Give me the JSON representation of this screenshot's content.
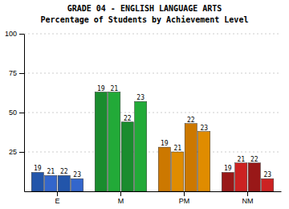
{
  "chart_data": {
    "type": "bar",
    "title": "GRADE 04 - ENGLISH LANGUAGE ARTS",
    "subtitle": "Percentage of Students by Achievement Level",
    "categories": [
      "E",
      "M",
      "PM",
      "NM"
    ],
    "series": [
      {
        "name": "19",
        "values": [
          12,
          63,
          28,
          12
        ],
        "colors": [
          "#2255aa",
          "#1a8c2e",
          "#cc7800",
          "#991818"
        ]
      },
      {
        "name": "21",
        "values": [
          10,
          63,
          25,
          18
        ],
        "colors": [
          "#3366cc",
          "#22aa38",
          "#e08c00",
          "#cc2222"
        ]
      },
      {
        "name": "22",
        "values": [
          10,
          44,
          43,
          18
        ],
        "colors": [
          "#2255aa",
          "#1a8c2e",
          "#cc7800",
          "#991818"
        ]
      },
      {
        "name": "23",
        "values": [
          8,
          57,
          38,
          8
        ],
        "colors": [
          "#3366cc",
          "#22aa38",
          "#e08c00",
          "#cc2222"
        ]
      }
    ],
    "ylim": [
      0,
      100
    ],
    "yticks": [
      25,
      50,
      75,
      100
    ],
    "grid": true
  }
}
